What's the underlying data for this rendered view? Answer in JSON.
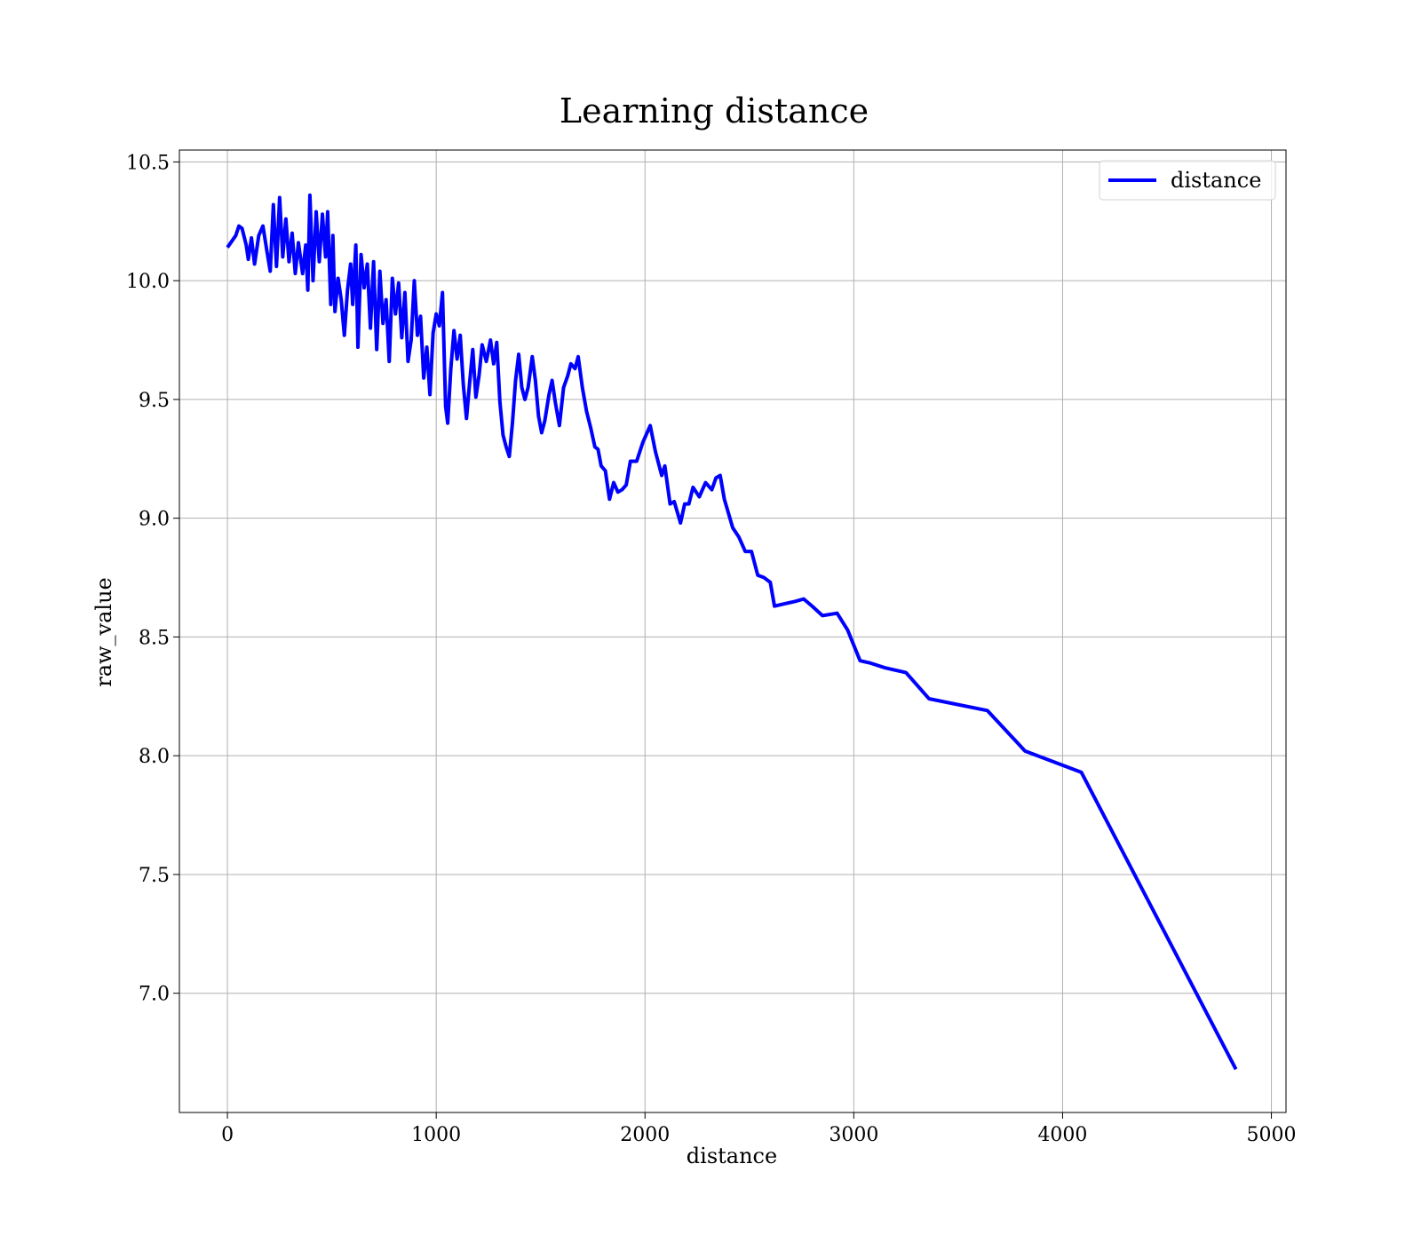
{
  "chart_data": {
    "type": "line",
    "title": "Learning distance",
    "x_label": "distance",
    "y_label": "raw_value",
    "x": [
      0,
      40,
      55,
      70,
      90,
      100,
      115,
      130,
      150,
      170,
      190,
      205,
      220,
      235,
      250,
      265,
      280,
      295,
      310,
      325,
      340,
      360,
      375,
      385,
      395,
      410,
      425,
      440,
      455,
      470,
      480,
      495,
      505,
      515,
      530,
      545,
      560,
      575,
      590,
      600,
      615,
      625,
      640,
      655,
      670,
      685,
      700,
      715,
      730,
      745,
      760,
      775,
      790,
      805,
      820,
      835,
      850,
      865,
      880,
      895,
      910,
      925,
      940,
      955,
      970,
      985,
      1000,
      1015,
      1030,
      1045,
      1055,
      1070,
      1085,
      1100,
      1115,
      1130,
      1145,
      1160,
      1175,
      1190,
      1205,
      1220,
      1240,
      1260,
      1275,
      1290,
      1305,
      1320,
      1335,
      1350,
      1365,
      1380,
      1395,
      1410,
      1425,
      1440,
      1460,
      1475,
      1490,
      1505,
      1520,
      1540,
      1555,
      1570,
      1590,
      1610,
      1630,
      1645,
      1665,
      1680,
      1700,
      1720,
      1740,
      1760,
      1775,
      1790,
      1810,
      1830,
      1850,
      1870,
      1890,
      1910,
      1930,
      1960,
      1990,
      2025,
      2050,
      2080,
      2095,
      2120,
      2140,
      2170,
      2190,
      2210,
      2230,
      2260,
      2290,
      2320,
      2340,
      2360,
      2380,
      2420,
      2450,
      2480,
      2510,
      2540,
      2570,
      2600,
      2620,
      2670,
      2720,
      2760,
      2800,
      2850,
      2920,
      2970,
      3030,
      3080,
      3150,
      3250,
      3360,
      3640,
      3820,
      4090,
      4830
    ],
    "series": [
      {
        "name": "distance",
        "color": "#0000ff",
        "values": [
          10.14,
          10.19,
          10.23,
          10.22,
          10.15,
          10.09,
          10.18,
          10.07,
          10.19,
          10.23,
          10.12,
          10.04,
          10.32,
          10.06,
          10.35,
          10.1,
          10.26,
          10.08,
          10.2,
          10.03,
          10.16,
          10.03,
          10.15,
          9.96,
          10.36,
          10.0,
          10.29,
          10.08,
          10.28,
          10.1,
          10.29,
          9.9,
          10.19,
          9.87,
          10.01,
          9.92,
          9.77,
          9.96,
          10.07,
          9.9,
          10.15,
          9.72,
          10.11,
          9.97,
          10.07,
          9.8,
          10.08,
          9.71,
          10.04,
          9.82,
          9.92,
          9.66,
          10.01,
          9.86,
          9.99,
          9.76,
          9.95,
          9.66,
          9.75,
          10.0,
          9.77,
          9.85,
          9.59,
          9.72,
          9.52,
          9.78,
          9.86,
          9.81,
          9.95,
          9.47,
          9.4,
          9.63,
          9.79,
          9.67,
          9.77,
          9.56,
          9.42,
          9.57,
          9.71,
          9.51,
          9.6,
          9.73,
          9.66,
          9.75,
          9.65,
          9.74,
          9.49,
          9.35,
          9.3,
          9.26,
          9.4,
          9.58,
          9.69,
          9.55,
          9.5,
          9.55,
          9.68,
          9.58,
          9.43,
          9.36,
          9.41,
          9.52,
          9.58,
          9.49,
          9.39,
          9.55,
          9.6,
          9.65,
          9.63,
          9.68,
          9.55,
          9.45,
          9.38,
          9.3,
          9.29,
          9.22,
          9.2,
          9.08,
          9.15,
          9.11,
          9.12,
          9.14,
          9.24,
          9.24,
          9.32,
          9.39,
          9.28,
          9.18,
          9.22,
          9.06,
          9.07,
          8.98,
          9.06,
          9.06,
          9.13,
          9.09,
          9.15,
          9.12,
          9.17,
          9.18,
          9.08,
          8.96,
          8.92,
          8.86,
          8.86,
          8.76,
          8.75,
          8.73,
          8.63,
          8.64,
          8.65,
          8.66,
          8.63,
          8.59,
          8.6,
          8.53,
          8.4,
          8.39,
          8.37,
          8.35,
          8.24,
          8.19,
          8.02,
          7.93,
          6.68
        ]
      }
    ],
    "xlim": [
      -230,
      5070
    ],
    "ylim": [
      6.498,
      10.55
    ],
    "xticks": [
      0,
      1000,
      2000,
      3000,
      4000,
      5000
    ],
    "yticks": [
      {
        "value": 7,
        "label": "7.0"
      },
      7.5,
      {
        "value": 8,
        "label": "8.0"
      },
      8.5,
      {
        "value": 9,
        "label": "9.0"
      },
      9.5,
      {
        "value": 10,
        "label": "10.0"
      },
      10.5
    ],
    "grid": true,
    "legend": "upper right"
  }
}
